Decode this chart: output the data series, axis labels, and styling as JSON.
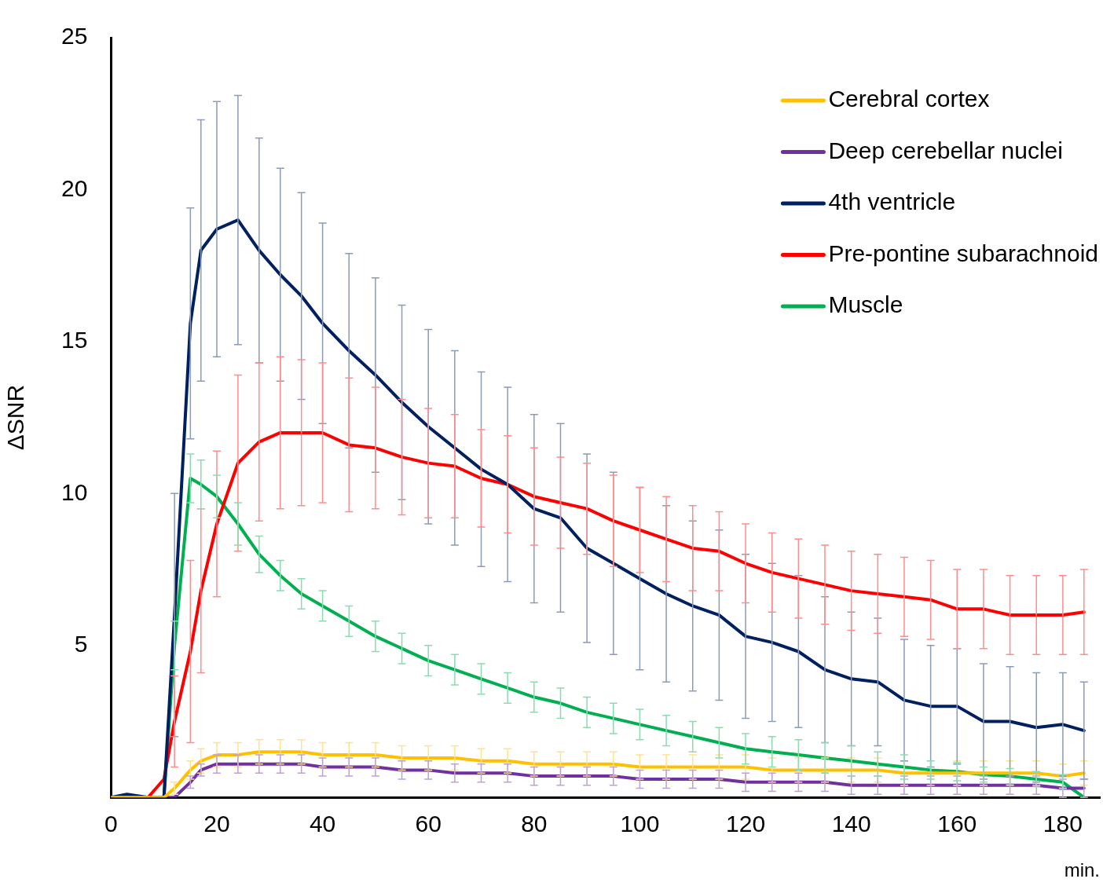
{
  "chart_data": {
    "type": "line",
    "ylabel": "ΔSNR",
    "xlabel": "min.",
    "xlim": [
      0,
      187
    ],
    "xticks": [
      0,
      20,
      40,
      60,
      80,
      100,
      120,
      140,
      160,
      180
    ],
    "ylim": [
      0,
      25
    ],
    "yticks": [
      5,
      10,
      15,
      20,
      25
    ],
    "grid": false,
    "legend": "top right",
    "marker": "none",
    "line_style": "solid",
    "x": [
      0,
      3,
      7,
      10,
      12,
      15,
      17,
      20,
      24,
      28,
      32,
      36,
      40,
      45,
      50,
      55,
      60,
      65,
      70,
      75,
      80,
      85,
      90,
      95,
      100,
      105,
      110,
      115,
      120,
      125,
      130,
      135,
      140,
      145,
      150,
      155,
      160,
      165,
      170,
      175,
      180,
      184
    ],
    "series": [
      {
        "name": "Cerebral cortex",
        "color": "#ffc000",
        "values": [
          0,
          0,
          0,
          0,
          0.3,
          0.9,
          1.2,
          1.4,
          1.4,
          1.5,
          1.5,
          1.5,
          1.4,
          1.4,
          1.4,
          1.3,
          1.3,
          1.3,
          1.2,
          1.2,
          1.1,
          1.1,
          1.1,
          1.1,
          1.0,
          1.0,
          1.0,
          1.0,
          1.0,
          0.9,
          0.9,
          0.9,
          0.9,
          0.9,
          0.8,
          0.8,
          0.8,
          0.8,
          0.8,
          0.8,
          0.7,
          0.8
        ],
        "errors": [
          null,
          null,
          null,
          null,
          0.2,
          0.3,
          0.4,
          0.4,
          0.4,
          0.4,
          0.4,
          0.4,
          0.4,
          0.4,
          0.4,
          0.4,
          0.4,
          0.4,
          0.4,
          0.4,
          0.4,
          0.4,
          0.4,
          0.4,
          0.4,
          0.4,
          0.4,
          0.4,
          0.4,
          0.4,
          0.4,
          0.4,
          0.4,
          0.4,
          0.4,
          0.4,
          0.4,
          0.4,
          0.4,
          0.4,
          0.4,
          0.4
        ]
      },
      {
        "name": "Deep cerebellar nuclei",
        "color": "#7030a0",
        "values": [
          0,
          0,
          0,
          0,
          0,
          0.5,
          0.9,
          1.1,
          1.1,
          1.1,
          1.1,
          1.1,
          1.0,
          1.0,
          1.0,
          0.9,
          0.9,
          0.8,
          0.8,
          0.8,
          0.7,
          0.7,
          0.7,
          0.7,
          0.6,
          0.6,
          0.6,
          0.6,
          0.5,
          0.5,
          0.5,
          0.5,
          0.4,
          0.4,
          0.4,
          0.4,
          0.4,
          0.4,
          0.4,
          0.4,
          0.3,
          0.3
        ],
        "errors": [
          null,
          null,
          null,
          null,
          null,
          0.2,
          0.2,
          0.3,
          0.3,
          0.3,
          0.3,
          0.3,
          0.3,
          0.3,
          0.3,
          0.3,
          0.3,
          0.3,
          0.3,
          0.3,
          0.3,
          0.3,
          0.3,
          0.3,
          0.3,
          0.3,
          0.3,
          0.3,
          0.3,
          0.3,
          0.3,
          0.3,
          0.3,
          0.3,
          0.3,
          0.3,
          0.3,
          0.3,
          0.3,
          0.3,
          0.3,
          0.3
        ]
      },
      {
        "name": "4th ventricle",
        "color": "#002060",
        "values": [
          0,
          0.1,
          0,
          0,
          6,
          15.6,
          18.0,
          18.7,
          19.0,
          18.0,
          17.2,
          16.5,
          15.6,
          14.7,
          13.9,
          13.0,
          12.2,
          11.5,
          10.8,
          10.3,
          9.5,
          9.2,
          8.2,
          7.7,
          7.2,
          6.7,
          6.3,
          6.0,
          5.3,
          5.1,
          4.8,
          4.2,
          3.9,
          3.8,
          3.2,
          3.0,
          3.0,
          2.5,
          2.5,
          2.3,
          2.4,
          2.2
        ],
        "errors": [
          null,
          null,
          null,
          null,
          4,
          3.8,
          4.3,
          4.2,
          4.1,
          3.7,
          3.5,
          3.4,
          3.3,
          3.2,
          3.2,
          3.2,
          3.2,
          3.2,
          3.2,
          3.2,
          3.1,
          3.1,
          3.1,
          3.0,
          3.0,
          2.9,
          2.8,
          2.8,
          2.7,
          2.6,
          2.5,
          2.4,
          2.2,
          2.1,
          2.0,
          2.0,
          1.9,
          1.9,
          1.8,
          1.8,
          1.7,
          1.6
        ]
      },
      {
        "name": "Pre-pontine subarachnoid",
        "color": "#ff0000",
        "values": [
          0,
          0,
          0,
          0.6,
          2.5,
          4.8,
          6.8,
          9.0,
          11.0,
          11.7,
          12.0,
          12.0,
          12.0,
          11.6,
          11.5,
          11.2,
          11.0,
          10.9,
          10.5,
          10.3,
          9.9,
          9.7,
          9.5,
          9.1,
          8.8,
          8.5,
          8.2,
          8.1,
          7.7,
          7.4,
          7.2,
          7.0,
          6.8,
          6.7,
          6.6,
          6.5,
          6.2,
          6.2,
          6.0,
          6.0,
          6.0,
          6.1
        ],
        "errors": [
          null,
          null,
          null,
          null,
          1.5,
          3.0,
          2.7,
          2.4,
          2.9,
          2.6,
          2.5,
          2.4,
          2.3,
          2.2,
          2.0,
          1.9,
          1.8,
          1.7,
          1.6,
          1.6,
          1.6,
          1.5,
          1.5,
          1.5,
          1.4,
          1.4,
          1.4,
          1.3,
          1.3,
          1.3,
          1.3,
          1.3,
          1.3,
          1.3,
          1.3,
          1.3,
          1.3,
          1.3,
          1.3,
          1.3,
          1.3,
          1.4
        ]
      },
      {
        "name": "Muscle",
        "color": "#00b050",
        "values": [
          null,
          null,
          null,
          0,
          5,
          10.5,
          10.3,
          9.9,
          9.0,
          8.0,
          7.3,
          6.7,
          6.3,
          5.8,
          5.3,
          4.9,
          4.5,
          4.2,
          3.9,
          3.6,
          3.3,
          3.1,
          2.8,
          2.6,
          2.4,
          2.2,
          2.0,
          1.8,
          1.6,
          1.5,
          1.4,
          1.3,
          1.2,
          1.1,
          1.0,
          0.9,
          0.85,
          0.75,
          0.7,
          0.6,
          0.5,
          0
        ],
        "errors": [
          null,
          null,
          null,
          null,
          0.8,
          0.8,
          0.8,
          0.7,
          0.7,
          0.6,
          0.5,
          0.5,
          0.5,
          0.5,
          0.5,
          0.5,
          0.5,
          0.5,
          0.5,
          0.5,
          0.5,
          0.5,
          0.5,
          0.5,
          0.5,
          0.5,
          0.5,
          0.5,
          0.5,
          0.5,
          0.5,
          0.5,
          0.5,
          0.4,
          0.4,
          0.3,
          0.3,
          0.25,
          0.25,
          0.25,
          0.25,
          null
        ]
      }
    ]
  }
}
